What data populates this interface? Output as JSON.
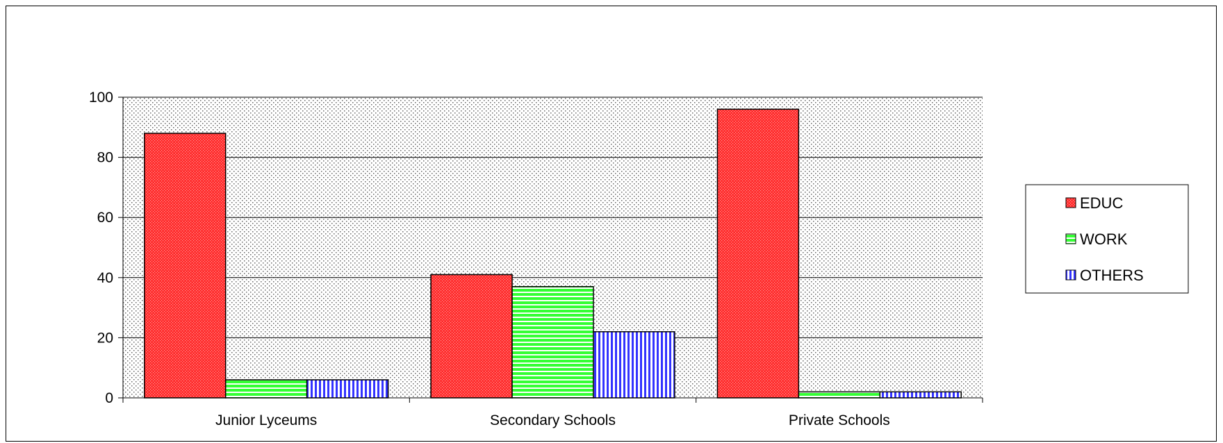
{
  "chart_data": {
    "type": "bar",
    "categories": [
      "Junior Lyceums",
      "Secondary Schools",
      "Private Schools"
    ],
    "series": [
      {
        "name": "EDUC",
        "values": [
          88,
          41,
          96
        ],
        "color": "#ff3333",
        "pattern": "dotted-red"
      },
      {
        "name": "WORK",
        "values": [
          6,
          37,
          2
        ],
        "color": "#33ff33",
        "pattern": "horizontal-stripes"
      },
      {
        "name": "OTHERS",
        "values": [
          6,
          22,
          2
        ],
        "color": "#3333ff",
        "pattern": "vertical-stripes"
      }
    ],
    "ylim": [
      0,
      100
    ],
    "yticks": [
      "0",
      "20",
      "40",
      "60",
      "80",
      "100"
    ],
    "title": "",
    "xlabel": "",
    "ylabel": "",
    "grid": true,
    "legend_position": "right",
    "plot_background": "dotted-gray"
  }
}
